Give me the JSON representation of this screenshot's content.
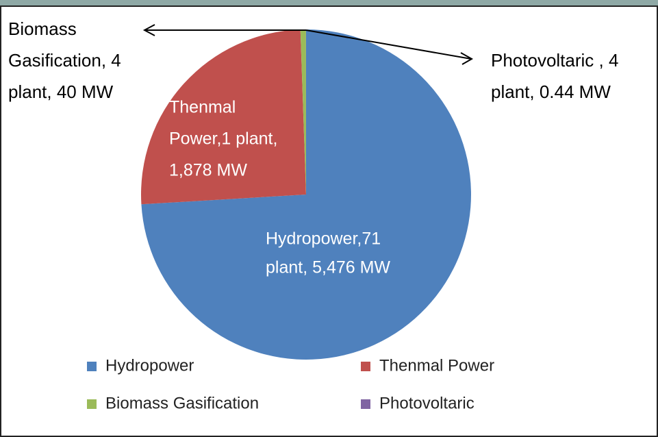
{
  "chart_data": {
    "type": "pie",
    "categories": [
      "Hydropower",
      "Thenmal Power",
      "Biomass Gasification",
      "Photovoltaric"
    ],
    "values": [
      5476,
      1878,
      40,
      0.44
    ],
    "value_labels": [
      [
        "Hydropower,71",
        "plant, 5,476 MW"
      ],
      [
        "Thenmal",
        "Power,1 plant,",
        "1,878 MW"
      ],
      [
        "Biomass",
        "Gasification, 4",
        "plant, 40  MW"
      ],
      [
        "Photovoltaric , 4",
        "plant, 0.44 MW"
      ]
    ],
    "colors": [
      "#4f81bd",
      "#c0504d",
      "#9bbb59",
      "#8064a2"
    ],
    "legend": "bottom"
  }
}
